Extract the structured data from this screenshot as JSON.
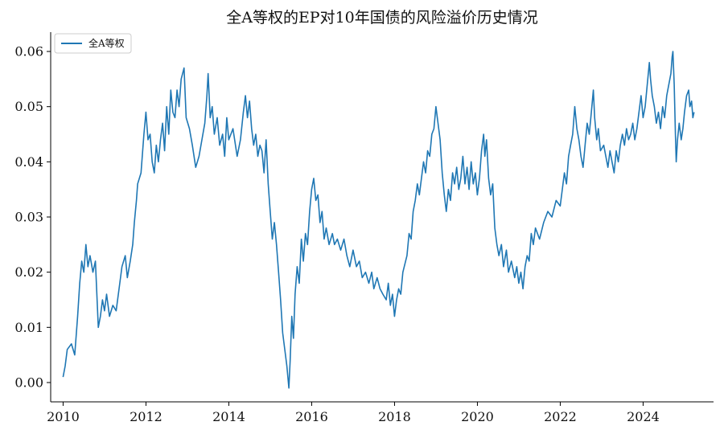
{
  "chart_data": {
    "type": "line",
    "title": "全A等权的EP对10年国债的风险溢价历史情况",
    "xlabel": "",
    "ylabel": "",
    "xlim": [
      2009.7,
      2025.7
    ],
    "ylim": [
      -0.0035,
      0.0635
    ],
    "x_ticks": [
      2010,
      2012,
      2014,
      2016,
      2018,
      2020,
      2022,
      2024
    ],
    "x_tick_labels": [
      "2010",
      "2012",
      "2014",
      "2016",
      "2018",
      "2020",
      "2022",
      "2024"
    ],
    "y_ticks": [
      0.0,
      0.01,
      0.02,
      0.03,
      0.04,
      0.05,
      0.06
    ],
    "y_tick_labels": [
      "0.00",
      "0.01",
      "0.02",
      "0.03",
      "0.04",
      "0.05",
      "0.06"
    ],
    "grid": false,
    "legend": {
      "position": "top-left",
      "entries": [
        "全A等权"
      ]
    },
    "series": [
      {
        "name": "全A等权",
        "color": "#1f77b4",
        "points": [
          [
            2010.0,
            0.001
          ],
          [
            2010.05,
            0.003
          ],
          [
            2010.1,
            0.006
          ],
          [
            2010.2,
            0.007
          ],
          [
            2010.28,
            0.005
          ],
          [
            2010.35,
            0.012
          ],
          [
            2010.4,
            0.018
          ],
          [
            2010.45,
            0.022
          ],
          [
            2010.5,
            0.02
          ],
          [
            2010.55,
            0.025
          ],
          [
            2010.6,
            0.021
          ],
          [
            2010.65,
            0.023
          ],
          [
            2010.72,
            0.02
          ],
          [
            2010.78,
            0.022
          ],
          [
            2010.82,
            0.015
          ],
          [
            2010.85,
            0.01
          ],
          [
            2010.9,
            0.012
          ],
          [
            2010.95,
            0.015
          ],
          [
            2011.0,
            0.013
          ],
          [
            2011.05,
            0.016
          ],
          [
            2011.12,
            0.012
          ],
          [
            2011.2,
            0.014
          ],
          [
            2011.28,
            0.013
          ],
          [
            2011.35,
            0.017
          ],
          [
            2011.42,
            0.021
          ],
          [
            2011.5,
            0.023
          ],
          [
            2011.55,
            0.019
          ],
          [
            2011.62,
            0.022
          ],
          [
            2011.68,
            0.025
          ],
          [
            2011.72,
            0.029
          ],
          [
            2011.77,
            0.033
          ],
          [
            2011.8,
            0.036
          ],
          [
            2011.88,
            0.038
          ],
          [
            2011.95,
            0.045
          ],
          [
            2012.0,
            0.049
          ],
          [
            2012.05,
            0.044
          ],
          [
            2012.1,
            0.045
          ],
          [
            2012.15,
            0.04
          ],
          [
            2012.2,
            0.038
          ],
          [
            2012.25,
            0.043
          ],
          [
            2012.3,
            0.04
          ],
          [
            2012.35,
            0.044
          ],
          [
            2012.4,
            0.047
          ],
          [
            2012.45,
            0.042
          ],
          [
            2012.5,
            0.05
          ],
          [
            2012.55,
            0.045
          ],
          [
            2012.6,
            0.053
          ],
          [
            2012.65,
            0.049
          ],
          [
            2012.7,
            0.048
          ],
          [
            2012.75,
            0.053
          ],
          [
            2012.8,
            0.05
          ],
          [
            2012.85,
            0.055
          ],
          [
            2012.92,
            0.057
          ],
          [
            2012.97,
            0.048
          ],
          [
            2013.05,
            0.046
          ],
          [
            2013.12,
            0.043
          ],
          [
            2013.2,
            0.039
          ],
          [
            2013.28,
            0.041
          ],
          [
            2013.35,
            0.044
          ],
          [
            2013.42,
            0.047
          ],
          [
            2013.47,
            0.052
          ],
          [
            2013.5,
            0.056
          ],
          [
            2013.55,
            0.048
          ],
          [
            2013.6,
            0.05
          ],
          [
            2013.65,
            0.045
          ],
          [
            2013.72,
            0.048
          ],
          [
            2013.78,
            0.043
          ],
          [
            2013.85,
            0.045
          ],
          [
            2013.9,
            0.041
          ],
          [
            2013.95,
            0.048
          ],
          [
            2014.0,
            0.044
          ],
          [
            2014.1,
            0.046
          ],
          [
            2014.2,
            0.041
          ],
          [
            2014.28,
            0.044
          ],
          [
            2014.35,
            0.049
          ],
          [
            2014.4,
            0.052
          ],
          [
            2014.45,
            0.048
          ],
          [
            2014.5,
            0.051
          ],
          [
            2014.55,
            0.046
          ],
          [
            2014.6,
            0.043
          ],
          [
            2014.65,
            0.045
          ],
          [
            2014.7,
            0.041
          ],
          [
            2014.75,
            0.043
          ],
          [
            2014.8,
            0.042
          ],
          [
            2014.85,
            0.038
          ],
          [
            2014.9,
            0.044
          ],
          [
            2014.95,
            0.036
          ],
          [
            2015.0,
            0.031
          ],
          [
            2015.05,
            0.026
          ],
          [
            2015.1,
            0.029
          ],
          [
            2015.15,
            0.025
          ],
          [
            2015.2,
            0.02
          ],
          [
            2015.25,
            0.015
          ],
          [
            2015.3,
            0.009
          ],
          [
            2015.35,
            0.006
          ],
          [
            2015.4,
            0.003
          ],
          [
            2015.45,
            -0.001
          ],
          [
            2015.48,
            0.004
          ],
          [
            2015.52,
            0.012
          ],
          [
            2015.56,
            0.008
          ],
          [
            2015.6,
            0.016
          ],
          [
            2015.65,
            0.021
          ],
          [
            2015.7,
            0.018
          ],
          [
            2015.75,
            0.026
          ],
          [
            2015.8,
            0.022
          ],
          [
            2015.85,
            0.027
          ],
          [
            2015.9,
            0.025
          ],
          [
            2015.95,
            0.031
          ],
          [
            2016.0,
            0.035
          ],
          [
            2016.05,
            0.037
          ],
          [
            2016.1,
            0.033
          ],
          [
            2016.15,
            0.034
          ],
          [
            2016.2,
            0.029
          ],
          [
            2016.25,
            0.031
          ],
          [
            2016.3,
            0.026
          ],
          [
            2016.35,
            0.028
          ],
          [
            2016.42,
            0.025
          ],
          [
            2016.5,
            0.027
          ],
          [
            2016.55,
            0.025
          ],
          [
            2016.62,
            0.026
          ],
          [
            2016.7,
            0.024
          ],
          [
            2016.78,
            0.026
          ],
          [
            2016.85,
            0.023
          ],
          [
            2016.92,
            0.021
          ],
          [
            2017.0,
            0.024
          ],
          [
            2017.08,
            0.021
          ],
          [
            2017.15,
            0.022
          ],
          [
            2017.22,
            0.019
          ],
          [
            2017.3,
            0.02
          ],
          [
            2017.38,
            0.018
          ],
          [
            2017.45,
            0.02
          ],
          [
            2017.5,
            0.017
          ],
          [
            2017.58,
            0.019
          ],
          [
            2017.65,
            0.017
          ],
          [
            2017.72,
            0.016
          ],
          [
            2017.8,
            0.015
          ],
          [
            2017.85,
            0.018
          ],
          [
            2017.9,
            0.014
          ],
          [
            2017.95,
            0.016
          ],
          [
            2018.0,
            0.012
          ],
          [
            2018.05,
            0.015
          ],
          [
            2018.1,
            0.017
          ],
          [
            2018.15,
            0.016
          ],
          [
            2018.2,
            0.02
          ],
          [
            2018.3,
            0.023
          ],
          [
            2018.35,
            0.027
          ],
          [
            2018.4,
            0.026
          ],
          [
            2018.45,
            0.031
          ],
          [
            2018.5,
            0.033
          ],
          [
            2018.55,
            0.036
          ],
          [
            2018.6,
            0.034
          ],
          [
            2018.65,
            0.037
          ],
          [
            2018.7,
            0.04
          ],
          [
            2018.75,
            0.038
          ],
          [
            2018.8,
            0.042
          ],
          [
            2018.85,
            0.041
          ],
          [
            2018.9,
            0.045
          ],
          [
            2018.95,
            0.046
          ],
          [
            2019.0,
            0.05
          ],
          [
            2019.05,
            0.047
          ],
          [
            2019.1,
            0.044
          ],
          [
            2019.15,
            0.038
          ],
          [
            2019.2,
            0.034
          ],
          [
            2019.25,
            0.031
          ],
          [
            2019.3,
            0.035
          ],
          [
            2019.35,
            0.033
          ],
          [
            2019.4,
            0.038
          ],
          [
            2019.45,
            0.036
          ],
          [
            2019.5,
            0.039
          ],
          [
            2019.55,
            0.035
          ],
          [
            2019.6,
            0.037
          ],
          [
            2019.65,
            0.041
          ],
          [
            2019.7,
            0.036
          ],
          [
            2019.75,
            0.039
          ],
          [
            2019.8,
            0.035
          ],
          [
            2019.85,
            0.04
          ],
          [
            2019.9,
            0.036
          ],
          [
            2019.95,
            0.038
          ],
          [
            2020.0,
            0.034
          ],
          [
            2020.05,
            0.037
          ],
          [
            2020.1,
            0.042
          ],
          [
            2020.15,
            0.045
          ],
          [
            2020.18,
            0.041
          ],
          [
            2020.22,
            0.044
          ],
          [
            2020.27,
            0.037
          ],
          [
            2020.32,
            0.034
          ],
          [
            2020.37,
            0.036
          ],
          [
            2020.42,
            0.028
          ],
          [
            2020.47,
            0.025
          ],
          [
            2020.52,
            0.023
          ],
          [
            2020.58,
            0.025
          ],
          [
            2020.63,
            0.021
          ],
          [
            2020.7,
            0.024
          ],
          [
            2020.75,
            0.02
          ],
          [
            2020.82,
            0.022
          ],
          [
            2020.9,
            0.019
          ],
          [
            2020.95,
            0.021
          ],
          [
            2021.0,
            0.018
          ],
          [
            2021.05,
            0.02
          ],
          [
            2021.1,
            0.017
          ],
          [
            2021.15,
            0.021
          ],
          [
            2021.2,
            0.023
          ],
          [
            2021.25,
            0.022
          ],
          [
            2021.3,
            0.027
          ],
          [
            2021.35,
            0.025
          ],
          [
            2021.4,
            0.028
          ],
          [
            2021.5,
            0.026
          ],
          [
            2021.6,
            0.029
          ],
          [
            2021.7,
            0.031
          ],
          [
            2021.8,
            0.03
          ],
          [
            2021.9,
            0.033
          ],
          [
            2022.0,
            0.032
          ],
          [
            2022.05,
            0.035
          ],
          [
            2022.1,
            0.038
          ],
          [
            2022.15,
            0.036
          ],
          [
            2022.2,
            0.041
          ],
          [
            2022.25,
            0.043
          ],
          [
            2022.3,
            0.045
          ],
          [
            2022.35,
            0.05
          ],
          [
            2022.4,
            0.046
          ],
          [
            2022.45,
            0.044
          ],
          [
            2022.5,
            0.041
          ],
          [
            2022.55,
            0.039
          ],
          [
            2022.6,
            0.043
          ],
          [
            2022.65,
            0.047
          ],
          [
            2022.7,
            0.045
          ],
          [
            2022.75,
            0.049
          ],
          [
            2022.8,
            0.053
          ],
          [
            2022.83,
            0.048
          ],
          [
            2022.88,
            0.044
          ],
          [
            2022.92,
            0.046
          ],
          [
            2022.97,
            0.042
          ],
          [
            2023.05,
            0.043
          ],
          [
            2023.1,
            0.041
          ],
          [
            2023.15,
            0.039
          ],
          [
            2023.2,
            0.042
          ],
          [
            2023.25,
            0.04
          ],
          [
            2023.3,
            0.038
          ],
          [
            2023.35,
            0.042
          ],
          [
            2023.4,
            0.04
          ],
          [
            2023.45,
            0.043
          ],
          [
            2023.5,
            0.045
          ],
          [
            2023.55,
            0.043
          ],
          [
            2023.6,
            0.046
          ],
          [
            2023.65,
            0.044
          ],
          [
            2023.7,
            0.045
          ],
          [
            2023.75,
            0.047
          ],
          [
            2023.8,
            0.044
          ],
          [
            2023.85,
            0.046
          ],
          [
            2023.9,
            0.049
          ],
          [
            2023.95,
            0.052
          ],
          [
            2024.0,
            0.048
          ],
          [
            2024.05,
            0.05
          ],
          [
            2024.1,
            0.054
          ],
          [
            2024.15,
            0.058
          ],
          [
            2024.18,
            0.055
          ],
          [
            2024.22,
            0.052
          ],
          [
            2024.27,
            0.05
          ],
          [
            2024.32,
            0.047
          ],
          [
            2024.37,
            0.049
          ],
          [
            2024.42,
            0.046
          ],
          [
            2024.47,
            0.05
          ],
          [
            2024.52,
            0.048
          ],
          [
            2024.57,
            0.052
          ],
          [
            2024.62,
            0.054
          ],
          [
            2024.67,
            0.056
          ],
          [
            2024.7,
            0.059
          ],
          [
            2024.72,
            0.06
          ],
          [
            2024.75,
            0.054
          ],
          [
            2024.78,
            0.045
          ],
          [
            2024.8,
            0.04
          ],
          [
            2024.83,
            0.044
          ],
          [
            2024.87,
            0.047
          ],
          [
            2024.92,
            0.044
          ],
          [
            2024.96,
            0.046
          ],
          [
            2025.0,
            0.049
          ],
          [
            2025.05,
            0.052
          ],
          [
            2025.1,
            0.053
          ],
          [
            2025.13,
            0.05
          ],
          [
            2025.17,
            0.051
          ],
          [
            2025.2,
            0.048
          ],
          [
            2025.23,
            0.049
          ]
        ]
      }
    ]
  }
}
